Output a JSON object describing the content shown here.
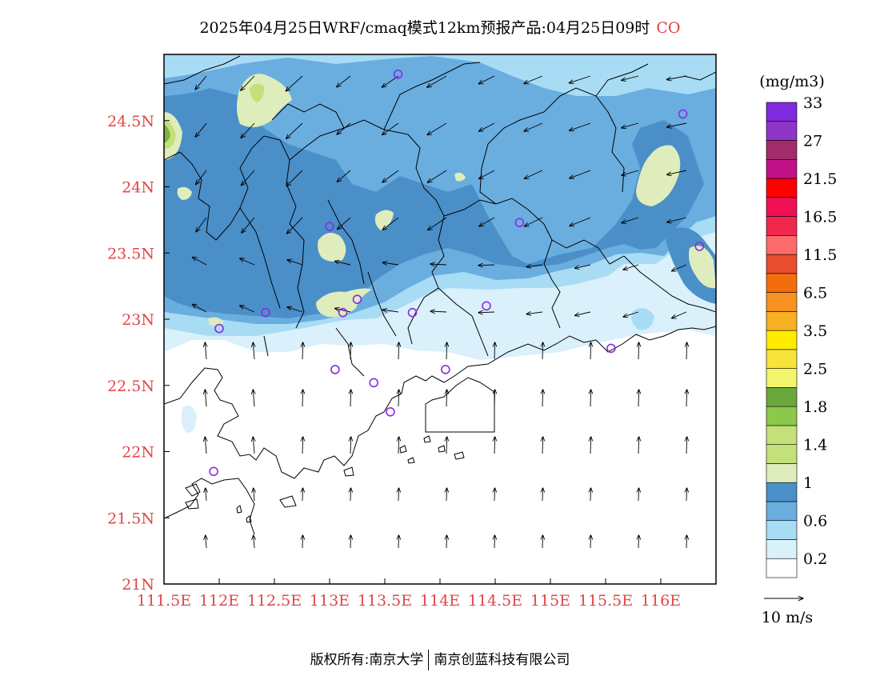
{
  "title": {
    "text": "2025年04月25日WRF/cmaq模式12km预报产品:04月25日09时",
    "species": "CO"
  },
  "map": {
    "lon_range": [
      111.5,
      116.5
    ],
    "lat_range": [
      21.0,
      25.0
    ],
    "x_ticks": [
      "111.5E",
      "112E",
      "112.5E",
      "113E",
      "113.5E",
      "114E",
      "114.5E",
      "115E",
      "115.5E",
      "116E"
    ],
    "y_ticks": [
      "21N",
      "21.5N",
      "22N",
      "22.5N",
      "23N",
      "23.5N",
      "24N",
      "24.5N"
    ],
    "colors": {
      "c0": "#ffffff",
      "c1": "#daf0fb",
      "c2": "#a8dcf5",
      "c3": "#6aaee0",
      "c4": "#4a8fc8",
      "c5": "#dfecbc",
      "c6": "#c4e07a",
      "c7": "#7ab343",
      "coast": "#000000",
      "station": "#8a2be2"
    }
  },
  "colorbar": {
    "unit": "(mg/m3)",
    "colors": [
      "#ffffff",
      "#daf0fb",
      "#a8dcf5",
      "#6aaee0",
      "#4a8fc8",
      "#dfecbc",
      "#c4e07a",
      "#c4e07a",
      "#8cc94a",
      "#6aa83c",
      "#f3f56c",
      "#f7e43b",
      "#ffeb00",
      "#f8b024",
      "#f69122",
      "#f36d0f",
      "#e84d2f",
      "#ff6b6b",
      "#f0284d",
      "#f01056",
      "#ff0000",
      "#c21088",
      "#a12c6a",
      "#8e36c8",
      "#7f2adc"
    ],
    "labels": [
      {
        "text": "0.2",
        "index": 1
      },
      {
        "text": "0.6",
        "index": 3
      },
      {
        "text": "1",
        "index": 5
      },
      {
        "text": "1.4",
        "index": 7
      },
      {
        "text": "1.8",
        "index": 9
      },
      {
        "text": "2.5",
        "index": 11
      },
      {
        "text": "3.5",
        "index": 13
      },
      {
        "text": "6.5",
        "index": 15
      },
      {
        "text": "11.5",
        "index": 17
      },
      {
        "text": "16.5",
        "index": 19
      },
      {
        "text": "21.5",
        "index": 21
      },
      {
        "text": "27",
        "index": 23
      },
      {
        "text": "33",
        "index": 25
      }
    ]
  },
  "wind_legend": {
    "label": "10 m/s"
  },
  "stations": [
    {
      "lon": 113.62,
      "lat": 24.85
    },
    {
      "lon": 116.2,
      "lat": 24.55
    },
    {
      "lon": 113.0,
      "lat": 23.7
    },
    {
      "lon": 114.72,
      "lat": 23.73
    },
    {
      "lon": 116.35,
      "lat": 23.55
    },
    {
      "lon": 112.42,
      "lat": 23.05
    },
    {
      "lon": 112.0,
      "lat": 22.93
    },
    {
      "lon": 113.12,
      "lat": 23.05
    },
    {
      "lon": 113.25,
      "lat": 23.15
    },
    {
      "lon": 113.75,
      "lat": 23.05
    },
    {
      "lon": 114.42,
      "lat": 23.1
    },
    {
      "lon": 115.55,
      "lat": 22.78
    },
    {
      "lon": 113.05,
      "lat": 22.62
    },
    {
      "lon": 113.4,
      "lat": 22.52
    },
    {
      "lon": 114.05,
      "lat": 22.62
    },
    {
      "lon": 113.55,
      "lat": 22.3
    },
    {
      "lon": 111.95,
      "lat": 21.85
    }
  ],
  "footer": {
    "left": "版权所有:南京大学",
    "right": "南京创蓝科技有限公司"
  }
}
